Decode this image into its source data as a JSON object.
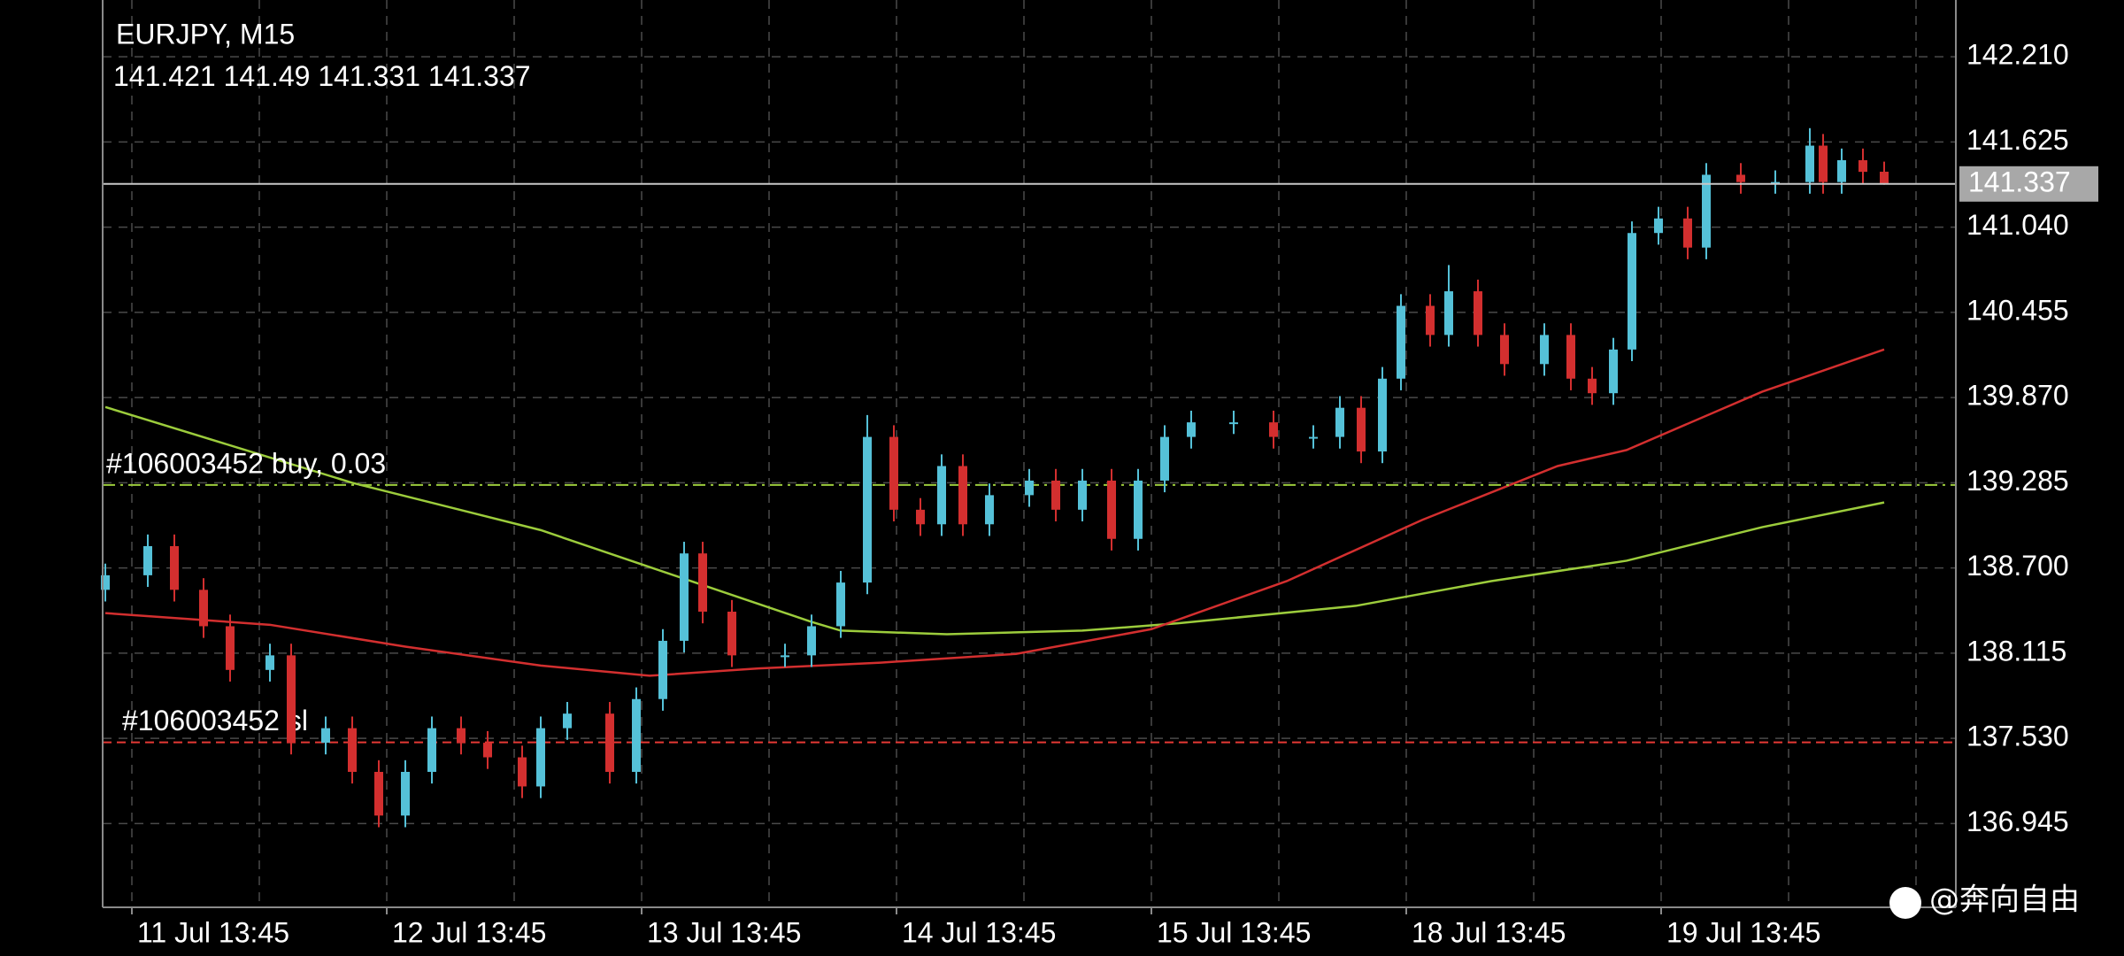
{
  "chart_data": {
    "type": "candlestick",
    "title": "EURJPY, M15",
    "xlim": [
      -11,
      687
    ],
    "ylim": [
      136.37,
      142.6
    ],
    "xticks": [
      {
        "value": 0,
        "label": "11 Jul 13:45"
      },
      {
        "value": 96,
        "label": "12 Jul 13:45"
      },
      {
        "value": 192,
        "label": "13 Jul 13:45"
      },
      {
        "value": 288,
        "label": "14 Jul 13:45"
      },
      {
        "value": 384,
        "label": "15 Jul 13:45"
      },
      {
        "value": 480,
        "label": "18 Jul 13:45"
      },
      {
        "value": 576,
        "label": "19 Jul 13:45"
      }
    ],
    "xgrid": [
      0,
      48,
      96,
      144,
      192,
      240,
      288,
      336,
      384,
      432,
      480,
      528,
      576,
      624,
      672
    ],
    "yticks": [
      {
        "value": 142.21,
        "label": "142.210"
      },
      141.625,
      {
        "value": 141.04,
        "label": "141.040"
      },
      140.455,
      {
        "value": 139.87,
        "label": "139.870"
      },
      139.285,
      {
        "value": 138.7,
        "label": "138.700"
      },
      138.115,
      {
        "value": 137.53,
        "label": "137.530"
      },
      136.945
    ],
    "grid": true,
    "up_color": "#55c1d8",
    "down_color": "#d32f2f",
    "x": [
      -10,
      6,
      16,
      27,
      37,
      52,
      60,
      73,
      83,
      93,
      103,
      113,
      124,
      134,
      147,
      154,
      164,
      180,
      190,
      200,
      208,
      215,
      226,
      246,
      256,
      267,
      277,
      287,
      297,
      305,
      313,
      323,
      338,
      348,
      358,
      369,
      379,
      389,
      399,
      415,
      430,
      445,
      455,
      463,
      471,
      478,
      489,
      496,
      507,
      517,
      532,
      542,
      550,
      558,
      565,
      575,
      586,
      593,
      606,
      619,
      632,
      637,
      644,
      652,
      660
    ],
    "open": [
      138.55,
      138.65,
      138.85,
      138.55,
      138.3,
      138.0,
      138.1,
      137.5,
      137.6,
      137.3,
      137.0,
      137.3,
      137.6,
      137.5,
      137.4,
      137.2,
      137.6,
      137.7,
      137.3,
      137.8,
      138.2,
      138.8,
      138.4,
      138.1,
      138.1,
      138.3,
      138.6,
      139.6,
      139.1,
      139.0,
      139.4,
      139.0,
      139.2,
      139.3,
      139.1,
      139.3,
      138.9,
      139.3,
      139.6,
      139.7,
      139.7,
      139.6,
      139.6,
      139.8,
      139.5,
      140.0,
      140.5,
      140.3,
      140.6,
      140.3,
      140.1,
      140.3,
      140.0,
      139.9,
      140.2,
      141.0,
      141.1,
      140.9,
      141.4,
      141.35,
      141.35,
      141.6,
      141.35,
      141.5,
      141.421
    ],
    "high": [
      138.73,
      138.93,
      138.93,
      138.63,
      138.38,
      138.18,
      138.18,
      137.68,
      137.68,
      137.38,
      137.38,
      137.68,
      137.68,
      137.58,
      137.48,
      137.68,
      137.78,
      137.78,
      137.88,
      138.28,
      138.88,
      138.88,
      138.48,
      138.18,
      138.38,
      138.68,
      139.75,
      139.68,
      139.18,
      139.48,
      139.48,
      139.28,
      139.38,
      139.38,
      139.38,
      139.38,
      139.38,
      139.68,
      139.78,
      139.78,
      139.78,
      139.68,
      139.88,
      139.88,
      140.08,
      140.58,
      140.58,
      140.78,
      140.68,
      140.38,
      140.38,
      140.38,
      140.08,
      140.28,
      141.08,
      141.18,
      141.18,
      141.48,
      141.48,
      141.43,
      141.72,
      141.68,
      141.58,
      141.58,
      141.49
    ],
    "low": [
      138.47,
      138.57,
      138.47,
      138.22,
      137.92,
      137.92,
      137.42,
      137.42,
      137.22,
      136.92,
      136.92,
      137.22,
      137.42,
      137.32,
      137.12,
      137.12,
      137.52,
      137.22,
      137.22,
      137.72,
      138.12,
      138.32,
      138.02,
      138.02,
      138.02,
      138.22,
      138.52,
      139.02,
      138.92,
      138.92,
      138.92,
      138.92,
      139.12,
      139.02,
      139.02,
      138.82,
      138.82,
      139.22,
      139.52,
      139.62,
      139.52,
      139.52,
      139.52,
      139.42,
      139.42,
      139.92,
      140.22,
      140.22,
      140.22,
      140.02,
      140.02,
      139.92,
      139.82,
      139.82,
      140.12,
      140.92,
      140.82,
      140.82,
      141.27,
      141.27,
      141.27,
      141.27,
      141.27,
      141.34,
      141.331
    ],
    "close": [
      138.65,
      138.85,
      138.55,
      138.3,
      138.0,
      138.1,
      137.5,
      137.6,
      137.3,
      137.0,
      137.3,
      137.6,
      137.5,
      137.4,
      137.2,
      137.6,
      137.7,
      137.3,
      137.8,
      138.2,
      138.8,
      138.4,
      138.1,
      138.1,
      138.3,
      138.6,
      139.6,
      139.1,
      139.0,
      139.4,
      139.0,
      139.2,
      139.3,
      139.1,
      139.3,
      138.9,
      139.3,
      139.6,
      139.7,
      139.7,
      139.6,
      139.6,
      139.8,
      139.5,
      140.0,
      140.5,
      140.3,
      140.6,
      140.3,
      140.1,
      140.3,
      140.0,
      139.9,
      140.2,
      141.0,
      141.1,
      140.9,
      141.4,
      141.35,
      141.35,
      141.6,
      141.35,
      141.5,
      141.42,
      141.337
    ],
    "lines": [
      {
        "color": "#9ccc3c",
        "x": [
          -10,
          83,
          154,
          208,
          256,
          267,
          307,
          358,
          394,
          461,
          512,
          563,
          614,
          660
        ],
        "values": [
          139.805,
          139.285,
          138.96,
          138.626,
          138.33,
          138.27,
          138.245,
          138.27,
          138.32,
          138.44,
          138.61,
          138.75,
          138.98,
          139.15
        ]
      },
      {
        "color": "#d32f2f",
        "x": [
          -10,
          52,
          103,
          154,
          195,
          236,
          282,
          333,
          384,
          435,
          486,
          537,
          563,
          614,
          660
        ],
        "values": [
          138.39,
          138.31,
          138.16,
          138.03,
          137.96,
          138.01,
          138.05,
          138.11,
          138.28,
          138.61,
          139.03,
          139.4,
          139.51,
          139.91,
          140.2
        ]
      }
    ],
    "levels": [
      {
        "label": "#106003452 buy, 0.03",
        "value": 139.27,
        "color": "#9ccc3c",
        "style": "dashdot"
      },
      {
        "label": "#106003452 sl",
        "value": 137.503,
        "color": "#e53935",
        "style": "dashed"
      }
    ],
    "price_line_color": "#c8c8c8",
    "watermark": "@奔向自由"
  }
}
